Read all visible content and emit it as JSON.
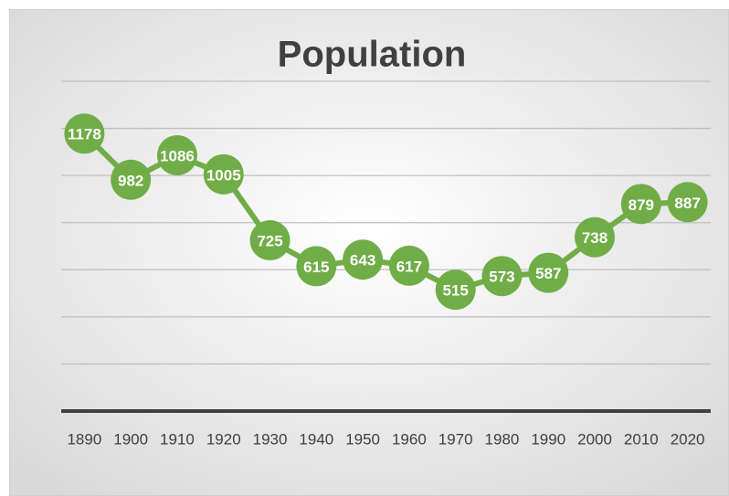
{
  "chart_data": {
    "type": "line",
    "title": "Population",
    "categories": [
      "1890",
      "1900",
      "1910",
      "1920",
      "1930",
      "1940",
      "1950",
      "1960",
      "1970",
      "1980",
      "1990",
      "2000",
      "2010",
      "2020"
    ],
    "series": [
      {
        "name": "Population",
        "color": "#70ad47",
        "values": [
          1178,
          982,
          1086,
          1005,
          725,
          615,
          643,
          617,
          515,
          573,
          587,
          738,
          879,
          887
        ]
      }
    ],
    "ylim": [
      0,
      1400
    ],
    "yticks": [
      0,
      200,
      400,
      600,
      800,
      1000,
      1200,
      1400
    ],
    "grid": true,
    "y_tick_labels": false,
    "data_labels": true
  }
}
